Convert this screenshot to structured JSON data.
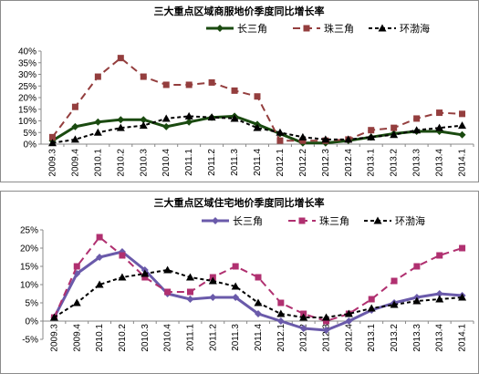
{
  "chart_data": [
    {
      "type": "line",
      "title": "三大重点区域商服地价季度同比增长率",
      "categories": [
        "2009.3",
        "2009.4",
        "2010.1",
        "2010.2",
        "2010.3",
        "2010.4",
        "2011.1",
        "2011.2",
        "2011.3",
        "2011.4",
        "2012.1",
        "2012.2",
        "2012.3",
        "2012.4",
        "2013.1",
        "2013.2",
        "2013.3",
        "2013.4",
        "2014.1"
      ],
      "ylim": [
        0,
        40
      ],
      "yticks": [
        "0%",
        "5%",
        "10%",
        "15%",
        "20%",
        "25%",
        "30%",
        "35%",
        "40%"
      ],
      "legend_position": "top",
      "grid": false,
      "series": [
        {
          "name": "长三角",
          "color": "#1a4a10",
          "values": [
            1.5,
            7.5,
            9.5,
            10.5,
            10.5,
            7.5,
            9.5,
            11.5,
            12,
            8.5,
            4.5,
            0.5,
            0.5,
            1.5,
            3,
            4.5,
            5.5,
            5.5,
            4
          ]
        },
        {
          "name": "珠三角",
          "color": "#943e3e",
          "values": [
            3,
            16,
            29,
            37,
            29,
            25.5,
            25.5,
            26.5,
            23,
            20.5,
            1.5,
            1.5,
            1.5,
            2,
            6,
            7,
            11,
            13.5,
            13
          ]
        },
        {
          "name": "环渤海",
          "color": "#000000",
          "values": [
            0.5,
            2,
            5,
            7,
            8,
            11,
            12,
            11.5,
            11,
            7,
            5,
            3,
            2,
            2,
            3,
            4,
            6,
            7,
            8
          ]
        }
      ]
    },
    {
      "type": "line",
      "title": "三大重点区域住宅地价季度同比增长率",
      "categories": [
        "2009.3",
        "2009.4",
        "2010.1",
        "2010.2",
        "2010.3",
        "2010.4",
        "2011.1",
        "2011.2",
        "2011.3",
        "2011.4",
        "2012.1",
        "2012.2",
        "2012.3",
        "2012.4",
        "2013.1",
        "2013.2",
        "2013.3",
        "2013.4",
        "2014.1"
      ],
      "ylim": [
        -5,
        25
      ],
      "yticks": [
        "-5%",
        "0%",
        "5%",
        "10%",
        "15%",
        "20%",
        "25%"
      ],
      "legend_position": "top",
      "grid": false,
      "series": [
        {
          "name": "长三角",
          "color": "#6a5aaa",
          "values": [
            1,
            13,
            17.5,
            19,
            14,
            7.5,
            6,
            6.5,
            6.5,
            2,
            0,
            -2,
            -2.5,
            0,
            3,
            5,
            6.5,
            7.5,
            7
          ]
        },
        {
          "name": "珠三角",
          "color": "#b03070",
          "values": [
            1,
            15,
            23,
            18,
            12,
            8,
            8,
            12,
            15,
            12,
            5,
            2,
            0,
            2,
            6,
            11,
            15,
            18,
            20
          ]
        },
        {
          "name": "环渤海",
          "color": "#000000",
          "values": [
            1,
            5,
            10,
            12,
            13,
            14,
            12,
            11,
            9.5,
            5,
            2,
            1,
            1,
            2,
            3.5,
            4.5,
            5.5,
            6,
            6.5
          ]
        }
      ]
    }
  ]
}
